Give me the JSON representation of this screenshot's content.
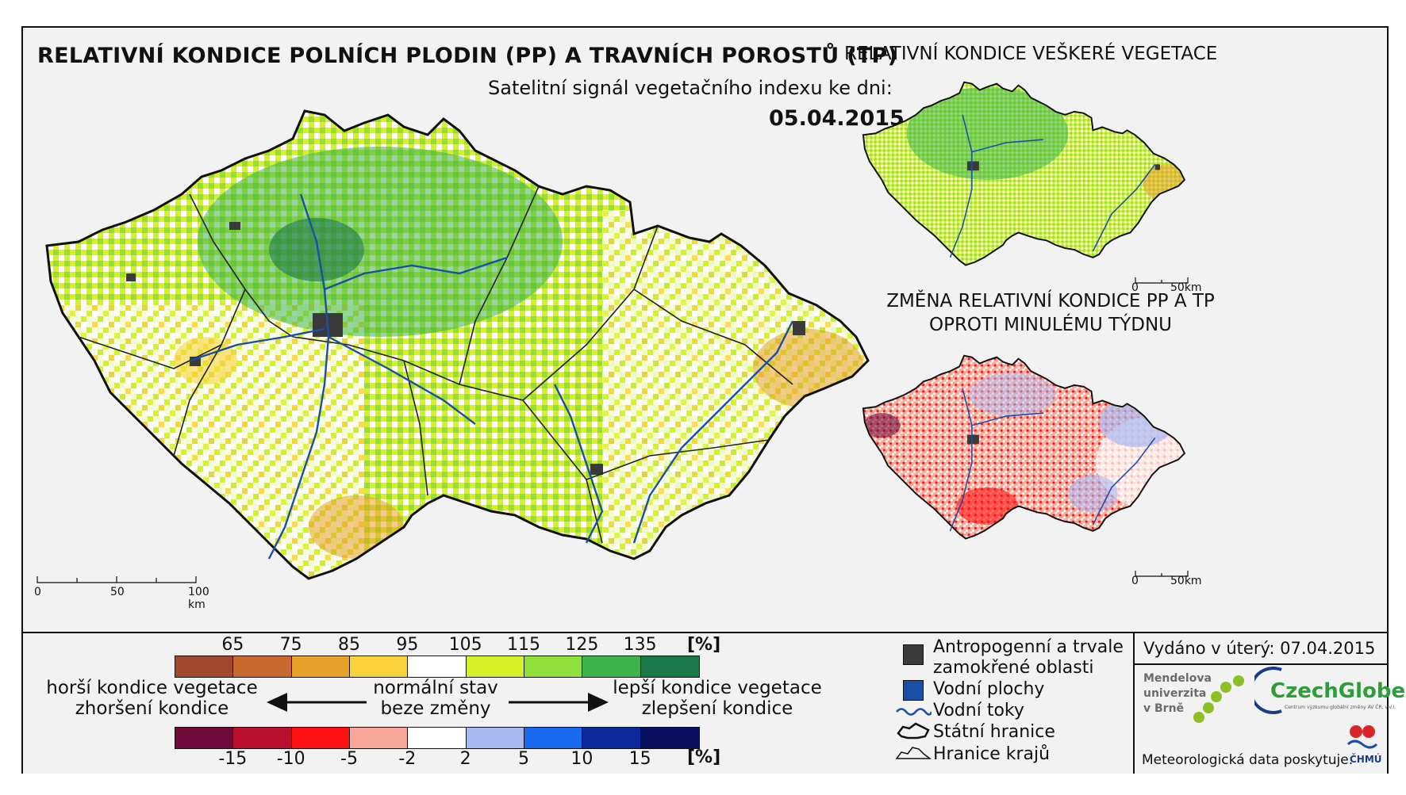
{
  "main": {
    "title": "RELATIVNÍ KONDICE POLNÍCH PLODIN (PP) A TRAVNÍCH POROSTŮ (TP)",
    "subtitle": "Satelitní signál vegetačního indexu ke dni:",
    "date": "05.04.2015",
    "scale": [
      "0",
      "50",
      "100 km"
    ]
  },
  "side_top": {
    "title": "RELATIVNÍ KONDICE VEŠKERÉ VEGETACE",
    "scale": [
      "0",
      "50km"
    ]
  },
  "side_bottom": {
    "title_line1": "ZMĚNA RELATIVNÍ KONDICE PP A TP",
    "title_line2": "OPROTI MINULÉMU TÝDNU",
    "scale": [
      "0",
      "50km"
    ]
  },
  "legend": {
    "condition_ticks": [
      "65",
      "75",
      "85",
      "95",
      "105",
      "115",
      "125",
      "135"
    ],
    "condition_unit": "[%]",
    "condition_colors": [
      "#a0492e",
      "#c8692f",
      "#e8a22b",
      "#f8d33a",
      "#ffffff",
      "#d6f02a",
      "#8fe03a",
      "#3cb44b",
      "#1a7a4a"
    ],
    "change_ticks": [
      "-15",
      "-10",
      "-5",
      "-2",
      "2",
      "5",
      "10",
      "15"
    ],
    "change_unit": "[%]",
    "change_colors": [
      "#6e0a3a",
      "#b8102e",
      "#ff1010",
      "#f8a898",
      "#ffffff",
      "#a8b8f0",
      "#1a6aef",
      "#0a2a9a",
      "#0a1060"
    ],
    "worse_line1": "horší kondice vegetace",
    "worse_line2": "zhoršení kondice",
    "normal_line1": "normální stav",
    "normal_line2": "beze změny",
    "better_line1": "lepší kondice vegetace",
    "better_line2": "zlepšení kondice",
    "items": {
      "anthropo_line1": "Antropogenní a trvale",
      "anthropo_line2": "zamokřené oblasti",
      "water_bodies": "Vodní plochy",
      "rivers": "Vodní toky",
      "state_border": "Státní hranice",
      "region_border": "Hranice krajů"
    },
    "anthropo_color": "#3a3a3a",
    "water_color": "#1a4fa8",
    "river_color": "#1a4fa8"
  },
  "info": {
    "issued": "Vydáno v úterý: 07.04.2015",
    "mendel_line1": "Mendelova",
    "mendel_line2": "univerzita",
    "mendel_line3": "v Brně",
    "czechglobe": "CzechGlobe",
    "czechglobe_sub": "Centrum výzkumu globální změny AV ČR, v.v.i.",
    "meteo": "Meteorologická data poskytuje:",
    "chmu": "ČHMÚ"
  }
}
